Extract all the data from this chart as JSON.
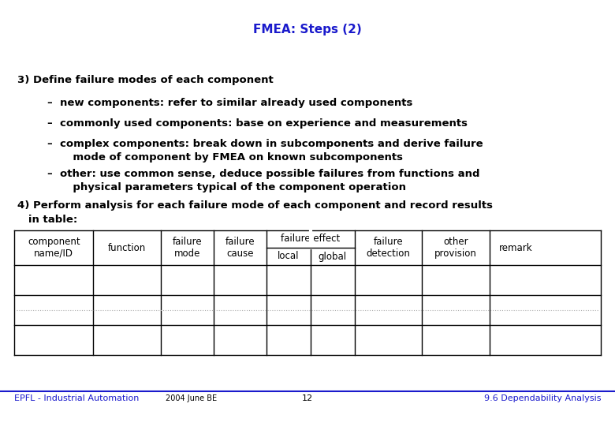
{
  "title": "FMEA: Steps (2)",
  "title_color": "#1a1acc",
  "title_fontsize": 11,
  "bg_color": "#ffffff",
  "body_text_color": "#000000",
  "body_fontsize": 9.5,
  "section3_header": "3) Define failure modes of each component",
  "section3_bullets": [
    "–  new components: refer to similar already used components",
    "–  commonly used components: base on experience and measurements",
    "–  complex components: break down in subcomponents and derive failure\n       mode of component by FMEA on known subcomponents",
    "–  other: use common sense, deduce possible failures from functions and\n       physical parameters typical of the component operation"
  ],
  "section4_line1": "4) Perform analysis for each failure mode of each component and record results",
  "section4_line2": "   in table:",
  "footer_left": "EPFL - Industrial Automation",
  "footer_mid": "2004 June BE",
  "footer_center": "12",
  "footer_right": "9.6 Dependability Analysis",
  "footer_color": "#1a1acc",
  "footer_fontsize": 8,
  "table_col_rel": [
    0.135,
    0.115,
    0.09,
    0.09,
    0.075,
    0.075,
    0.115,
    0.115,
    0.09
  ],
  "line_color": "#000000",
  "dotted_color": "#aaaaaa"
}
